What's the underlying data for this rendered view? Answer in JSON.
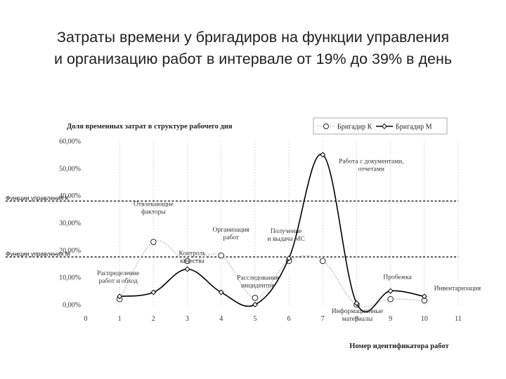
{
  "slide": {
    "title_line1": "Затраты времени у бригадиров на функции управления",
    "title_line2": "и организацию работ в интервале от 19% до 39% в день"
  },
  "chart_data": {
    "type": "line",
    "title": "Доля временных затрат в структуре рабочего дня",
    "xlabel": "Номер идентификатора работ",
    "ylabel": "",
    "x": [
      1,
      2,
      3,
      4,
      5,
      6,
      7,
      8,
      9,
      10
    ],
    "xticks": [
      "0",
      "1",
      "2",
      "3",
      "4",
      "5",
      "6",
      "7",
      "8",
      "9",
      "10",
      "11"
    ],
    "yticks": [
      "0,00%",
      "10,00%",
      "20,00%",
      "30,00%",
      "40,00%",
      "50,00%",
      "60,00%"
    ],
    "xlim": [
      0,
      11
    ],
    "ylim": [
      0,
      60
    ],
    "grid": "vertical",
    "legend_position": "top-right",
    "series": [
      {
        "name": "Бригадир К",
        "style": "dotted",
        "marker": "circle",
        "color": "#aaaaaa",
        "values": [
          2,
          23,
          16,
          18,
          2.5,
          16,
          16,
          0,
          2,
          1.5
        ]
      },
      {
        "name": "Бригадир М",
        "style": "solid",
        "marker": "diamond",
        "color": "#000000",
        "values": [
          3,
          4.5,
          13,
          4.5,
          0,
          17,
          55,
          0.5,
          5,
          3
        ]
      }
    ],
    "reference_lines": [
      {
        "label": "Функции управления К",
        "y": 38
      },
      {
        "label": "Функции управления М",
        "y": 17.5
      }
    ],
    "annotations": [
      {
        "lines": [
          "Распределение",
          "работ и обход"
        ],
        "x": 1,
        "y": 2
      },
      {
        "lines": [
          "Отвлекающие",
          "факторы"
        ],
        "x": 2,
        "y": 23
      },
      {
        "lines": [
          "Контроль",
          "качества"
        ],
        "x": 3,
        "y": 13
      },
      {
        "lines": [
          "Организация",
          "работ"
        ],
        "x": 4,
        "y": 18
      },
      {
        "lines": [
          "Расследования",
          "инцидентов"
        ],
        "x": 5,
        "y": 2.5
      },
      {
        "lines": [
          "Получение",
          "и выдача МС"
        ],
        "x": 6,
        "y": 17
      },
      {
        "lines": [
          "Работа с документами,",
          "отчетами"
        ],
        "x": 7,
        "y": 55
      },
      {
        "lines": [
          "Информационные",
          "материалы"
        ],
        "x": 8,
        "y": 0
      },
      {
        "lines": [
          "Пробежка"
        ],
        "x": 9,
        "y": 5
      },
      {
        "lines": [
          "Инвентаризация"
        ],
        "x": 10,
        "y": 3
      }
    ]
  }
}
